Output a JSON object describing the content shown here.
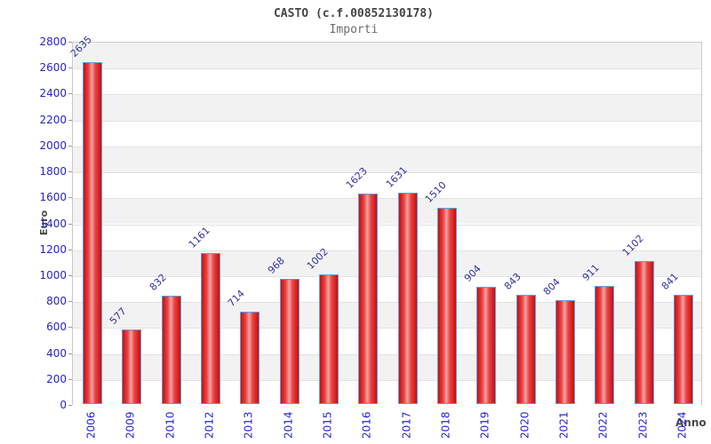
{
  "header": {
    "title": "CASTO (c.f.00852130178)",
    "subtitle": "Importi"
  },
  "chart_data": {
    "type": "bar",
    "title": "CASTO (c.f.00852130178)",
    "subtitle": "Importi",
    "xlabel": "Anno",
    "ylabel": "Euro",
    "categories": [
      "2006",
      "2009",
      "2010",
      "2012",
      "2013",
      "2014",
      "2015",
      "2016",
      "2017",
      "2018",
      "2019",
      "2020",
      "2021",
      "2022",
      "2023",
      "2024"
    ],
    "values": [
      2635,
      577,
      832,
      1161,
      714,
      968,
      1002,
      1623,
      1631,
      1510,
      904,
      843,
      804,
      911,
      1102,
      841
    ],
    "ylim": [
      0,
      2800
    ],
    "ytick_step": 200,
    "grid": "horizontal alternating bands",
    "legend": "none",
    "colors": {
      "bar_fill": "#e32b2b",
      "bar_fill_highlight": "#f2a2a2",
      "bar_border": "#5d9fdd",
      "tick_label": "#2424cd",
      "data_label": "#32329b",
      "band_gray": "#f2f2f2",
      "band_white": "#ffffff",
      "title_text": "#454545",
      "subtitle_text": "#6b6b6b",
      "axis_title_text": "#4a4a4a"
    }
  }
}
